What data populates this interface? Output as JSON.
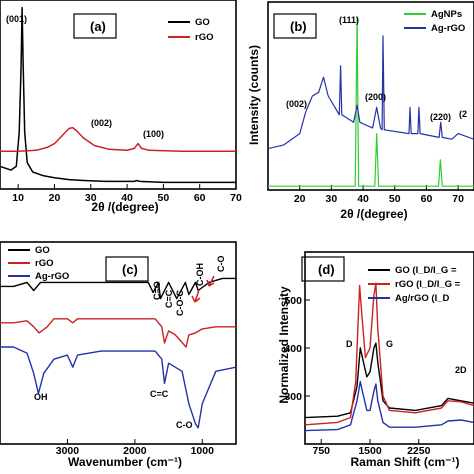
{
  "chart_data": [
    {
      "panel": "(a)",
      "type": "line",
      "xlabel": "2θ /(degree)",
      "ylabel": "",
      "xlim": [
        5,
        70
      ],
      "xticks": [
        10,
        20,
        30,
        40,
        50,
        60,
        70
      ],
      "xtick_labels": [
        "10",
        "20",
        "30",
        "40",
        "50",
        "60",
        "70"
      ],
      "ylim": [
        0,
        100
      ],
      "legend_position": "top-right",
      "series": [
        {
          "name": "GO",
          "color": "#000000",
          "x": [
            5,
            8,
            9.5,
            10.3,
            10.8,
            11.1,
            11.4,
            11.8,
            12.5,
            14,
            17,
            20,
            24,
            28,
            34,
            42,
            42.5,
            43.5,
            50,
            60,
            70
          ],
          "y": [
            12,
            10,
            12,
            30,
            65,
            96,
            65,
            30,
            14,
            9,
            7,
            6,
            5,
            4.5,
            4,
            4,
            4.5,
            4,
            3.5,
            3.5,
            3.5
          ]
        },
        {
          "name": "rGO",
          "color": "#cc2222",
          "x": [
            5,
            10,
            15,
            18,
            20,
            22,
            24,
            25,
            26,
            28,
            31,
            35,
            40,
            42,
            43,
            44,
            46,
            55,
            70
          ],
          "y": [
            20,
            20,
            20.5,
            22,
            24,
            28,
            32,
            32.5,
            31,
            27,
            23,
            21,
            20.5,
            21.5,
            24,
            21.5,
            20.5,
            20,
            20
          ]
        }
      ],
      "annotations": [
        "(001)",
        "(002)",
        "(100)"
      ]
    },
    {
      "panel": "(b)",
      "type": "line",
      "xlabel": "2θ /(degree)",
      "ylabel": "Intensity (counts)",
      "xlim": [
        10,
        75
      ],
      "xticks": [
        20,
        30,
        40,
        50,
        60,
        70
      ],
      "xtick_labels": [
        "20",
        "30",
        "40",
        "50",
        "60",
        "70"
      ],
      "ylim": [
        0,
        100
      ],
      "legend_position": "top-right",
      "series": [
        {
          "name": "AgNPs",
          "color": "#33cc33",
          "x": [
            10,
            37.5,
            38.1,
            38.6,
            43.7,
            44.3,
            44.9,
            63.8,
            64.4,
            65,
            76.5,
            77.2,
            78
          ],
          "y": [
            2,
            2,
            92,
            2,
            2,
            30,
            2,
            2,
            16,
            2,
            2,
            8,
            2
          ]
        },
        {
          "name": "Ag-rGO",
          "color": "#2233aa",
          "x": [
            10,
            15,
            20,
            22,
            24,
            26,
            27.5,
            29,
            32.5,
            32.9,
            33.3,
            37,
            38.1,
            39,
            43,
            44.3,
            45.5,
            46,
            46.3,
            46.7,
            54.5,
            54.8,
            55.2,
            57.3,
            57.6,
            58,
            64,
            64.5,
            65,
            68,
            70,
            75
          ],
          "y": [
            22,
            24,
            30,
            42,
            50,
            52,
            60,
            50,
            40,
            66,
            40,
            36,
            45,
            36,
            33,
            44,
            33,
            32,
            82,
            32,
            30,
            44,
            30,
            30,
            44,
            30,
            28,
            36,
            28,
            27,
            30,
            27
          ]
        }
      ],
      "annotations": [
        "(111)",
        "(002)",
        "(200)",
        "(220)",
        "(2"
      ]
    },
    {
      "panel": "(c)",
      "type": "line",
      "xlabel": "Wavenumber (cm⁻¹)",
      "ylabel": "",
      "xlim": [
        4000,
        500
      ],
      "xticks": [
        3000,
        2000,
        1000
      ],
      "xtick_labels": [
        "3000",
        "2000",
        "1000"
      ],
      "ylim": [
        0,
        100
      ],
      "legend_position": "top-left",
      "series": [
        {
          "name": "GO",
          "color": "#000000",
          "x": [
            4000,
            3800,
            3600,
            3500,
            3400,
            3200,
            3000,
            2500,
            2000,
            1800,
            1730,
            1650,
            1620,
            1500,
            1380,
            1250,
            1200,
            1100,
            1060,
            900,
            700,
            500
          ],
          "y": [
            78,
            78,
            80,
            76,
            80,
            80,
            80,
            80,
            80,
            80,
            75,
            80,
            72,
            80,
            72,
            80,
            74,
            80,
            76,
            80,
            82,
            82
          ]
        },
        {
          "name": "rGO",
          "color": "#cc2222",
          "x": [
            4000,
            3800,
            3600,
            3500,
            3420,
            3300,
            3200,
            3000,
            2920,
            2850,
            2500,
            2000,
            1700,
            1600,
            1560,
            1500,
            1400,
            1240,
            1200,
            1100,
            1000,
            800,
            500
          ],
          "y": [
            60,
            60,
            61,
            58,
            55,
            58,
            62,
            62,
            60,
            62,
            62,
            62,
            62,
            58,
            50,
            56,
            54,
            48,
            54,
            55,
            57,
            58,
            58
          ]
        },
        {
          "name": "Ag-rGO",
          "color": "#2233aa",
          "x": [
            4000,
            3800,
            3600,
            3500,
            3430,
            3350,
            3200,
            3000,
            2920,
            2850,
            2500,
            2000,
            1700,
            1600,
            1560,
            1500,
            1400,
            1300,
            1200,
            1100,
            1060,
            1000,
            800,
            500
          ],
          "y": [
            48,
            48,
            45,
            35,
            25,
            35,
            42,
            44,
            38,
            44,
            46,
            46,
            46,
            42,
            30,
            40,
            38,
            36,
            20,
            10,
            8,
            20,
            36,
            38
          ]
        }
      ],
      "annotations": [
        "C=O",
        "C=C",
        "C-O-C",
        "C-OH",
        "C-O",
        "OH",
        "C=C",
        "C-O"
      ]
    },
    {
      "panel": "(d)",
      "type": "line",
      "xlabel": "Raman Shift (cm⁻¹)",
      "ylabel": "Normalized Intensity",
      "xlim": [
        500,
        3100
      ],
      "xticks": [
        750,
        1500,
        2250
      ],
      "xtick_labels": [
        "750",
        "1500",
        "2250"
      ],
      "ylim": [
        200,
        600
      ],
      "yticks": [
        300,
        400,
        500
      ],
      "ytick_labels": [
        "300",
        "400",
        "500"
      ],
      "legend_position": "top-right",
      "series": [
        {
          "name": "GO (I",
          "color": "#000000",
          "x": [
            500,
            1000,
            1200,
            1300,
            1350,
            1400,
            1450,
            1500,
            1560,
            1590,
            1620,
            1700,
            1800,
            2200,
            2600,
            2700,
            2900,
            3100
          ],
          "y": [
            255,
            258,
            265,
            320,
            400,
            370,
            340,
            350,
            400,
            410,
            370,
            290,
            275,
            270,
            280,
            295,
            290,
            285
          ]
        },
        {
          "name": "rGO (I",
          "color": "#cc2222",
          "x": [
            500,
            1000,
            1200,
            1280,
            1340,
            1380,
            1430,
            1500,
            1560,
            1590,
            1620,
            1700,
            1800,
            2200,
            2600,
            2700,
            2900,
            3100
          ],
          "y": [
            240,
            245,
            255,
            330,
            530,
            460,
            380,
            400,
            510,
            535,
            440,
            300,
            270,
            265,
            275,
            290,
            288,
            280
          ]
        },
        {
          "name": "Ag/rGO (I",
          "color": "#2233aa",
          "x": [
            500,
            1000,
            1200,
            1300,
            1350,
            1400,
            1450,
            1500,
            1560,
            1590,
            1620,
            1700,
            1800,
            2200,
            2600,
            2700,
            2900,
            3100
          ],
          "y": [
            228,
            230,
            240,
            290,
            330,
            300,
            270,
            270,
            310,
            325,
            290,
            245,
            235,
            235,
            240,
            248,
            250,
            245
          ]
        }
      ],
      "legend_labels": [
        "GO (I_D/I_G =",
        "rGO (I_D/I_G =",
        "Ag/rGO (I_D"
      ],
      "annotations": [
        "D",
        "G",
        "2D"
      ]
    }
  ]
}
